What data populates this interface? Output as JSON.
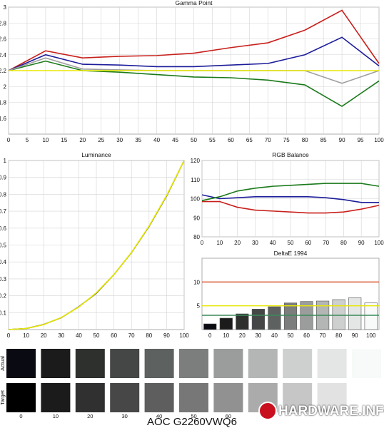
{
  "chart_data": [
    {
      "type": "line",
      "title": "Gamma Point",
      "xlabel": "",
      "ylabel": "",
      "xlim": [
        0,
        100
      ],
      "ylim": [
        1.4,
        3.0
      ],
      "x": [
        0,
        10,
        20,
        30,
        40,
        50,
        60,
        70,
        80,
        90,
        100
      ],
      "xticks": [
        0,
        5,
        10,
        15,
        20,
        25,
        30,
        35,
        40,
        45,
        50,
        55,
        60,
        65,
        70,
        75,
        80,
        85,
        90,
        95,
        100
      ],
      "yticks": [
        1.6,
        1.8,
        2,
        2.2,
        2.4,
        2.6,
        2.8,
        3
      ],
      "ytick_labels": [
        "1.6",
        "1.8",
        "2",
        "2.2",
        "2.4",
        "2.6",
        "2.8",
        "3"
      ],
      "grid": true,
      "series": [
        {
          "color": "#c8201c",
          "values": [
            2.2,
            2.45,
            2.36,
            2.38,
            2.39,
            2.42,
            2.49,
            2.55,
            2.71,
            2.96,
            2.29
          ]
        },
        {
          "color": "#1c1c9a",
          "values": [
            2.2,
            2.4,
            2.28,
            2.27,
            2.25,
            2.25,
            2.27,
            2.29,
            2.4,
            2.62,
            2.26
          ]
        },
        {
          "color": "#1a7a1a",
          "values": [
            2.2,
            2.32,
            2.2,
            2.18,
            2.15,
            2.12,
            2.11,
            2.08,
            2.02,
            1.75,
            2.07
          ]
        },
        {
          "color": "#a0a0a0",
          "values": [
            2.2,
            2.36,
            2.22,
            2.21,
            2.2,
            2.2,
            2.2,
            2.2,
            2.2,
            2.04,
            2.2
          ]
        },
        {
          "color": "#e8e800",
          "values": [
            2.2,
            2.2,
            2.2,
            2.2,
            2.2,
            2.2,
            2.2,
            2.2,
            2.2,
            2.2,
            2.2
          ]
        }
      ]
    },
    {
      "type": "line",
      "title": "Luminance",
      "xlim": [
        0,
        100
      ],
      "ylim": [
        0,
        1
      ],
      "x": [
        0,
        10,
        20,
        30,
        40,
        50,
        60,
        70,
        80,
        90,
        100
      ],
      "xticks": [
        0,
        10,
        20,
        30,
        40,
        50,
        60,
        70,
        80,
        90,
        100
      ],
      "yticks": [
        0.1,
        0.2,
        0.3,
        0.4,
        0.5,
        0.6,
        0.7,
        0.8,
        0.9,
        1
      ],
      "ytick_labels": [
        "0.1",
        "0.2",
        "0.3",
        "0.4",
        "0.5",
        "0.6",
        "0.7",
        "0.8",
        "0.9",
        "1"
      ],
      "grid": true,
      "series": [
        {
          "color": "#3a3a3a",
          "values": [
            0,
            0.006,
            0.03,
            0.07,
            0.135,
            0.215,
            0.325,
            0.455,
            0.61,
            0.79,
            1.0
          ]
        },
        {
          "color": "#e8e800",
          "values": [
            0,
            0.006,
            0.029,
            0.071,
            0.133,
            0.218,
            0.325,
            0.456,
            0.612,
            0.793,
            1.0
          ]
        }
      ]
    },
    {
      "type": "line",
      "title": "RGB Balance",
      "xlim": [
        0,
        100
      ],
      "ylim": [
        80,
        120
      ],
      "x": [
        0,
        10,
        20,
        30,
        40,
        50,
        60,
        70,
        80,
        90,
        100
      ],
      "xticks": [
        0,
        10,
        20,
        30,
        40,
        50,
        60,
        70,
        80,
        90,
        100
      ],
      "yticks": [
        80,
        90,
        100,
        110,
        120
      ],
      "ytick_labels": [
        "80",
        "90",
        "100",
        "110",
        "120"
      ],
      "grid": true,
      "series": [
        {
          "color": "#c8201c",
          "values": [
            98.5,
            98.5,
            95.5,
            94,
            93.5,
            93,
            92.5,
            92.5,
            93,
            94.5,
            96.5
          ]
        },
        {
          "color": "#1c1c9a",
          "values": [
            102,
            100,
            100.5,
            101,
            101,
            101,
            101,
            100.5,
            99.5,
            98,
            98
          ]
        },
        {
          "color": "#1a7a1a",
          "values": [
            99,
            101,
            104,
            105.5,
            106.5,
            107,
            107.5,
            108,
            108,
            108,
            106.5
          ]
        }
      ]
    },
    {
      "type": "bar",
      "title": "DeltaE 1994",
      "categories": [
        "0",
        "10",
        "20",
        "30",
        "40",
        "50",
        "60",
        "70",
        "80",
        "90",
        "100"
      ],
      "values": [
        1.2,
        2.4,
        3.3,
        4.3,
        4.8,
        5.6,
        5.9,
        6.0,
        6.3,
        6.7,
        5.6
      ],
      "ylim": [
        0,
        15
      ],
      "yticks": [
        5,
        10
      ],
      "ytick_labels": [
        "5",
        "10"
      ],
      "reference_lines": [
        {
          "value": 10,
          "color": "#d9532c"
        },
        {
          "value": 5,
          "color": "#e8e800"
        },
        {
          "value": 3,
          "color": "#3a8a5a"
        }
      ]
    }
  ],
  "swatches": {
    "actual_label": "Actual",
    "target_label": "Target",
    "labels": [
      "0",
      "10",
      "20",
      "30",
      "40",
      "50",
      "60",
      "70",
      "80",
      "90",
      "100"
    ],
    "actual_colors": [
      "#0a0a12",
      "#1a1b1a",
      "#2e302e",
      "#444746",
      "#5d6160",
      "#7b7e7c",
      "#9a9d9b",
      "#b3b6b4",
      "#cdd0ce",
      "#e3e6e4",
      "#f7faf8"
    ],
    "target_colors": [
      "#000000",
      "#1b1b1b",
      "#303030",
      "#474747",
      "#5e5e5e",
      "#777777",
      "#919191",
      "#ababab",
      "#c6c6c6",
      "#e2e2e2",
      "#ffffff"
    ]
  },
  "footer_title": "AOC G2260VWQ6",
  "brand": {
    "text": "HARDWARE.INFO",
    "color": "#c8101f"
  }
}
